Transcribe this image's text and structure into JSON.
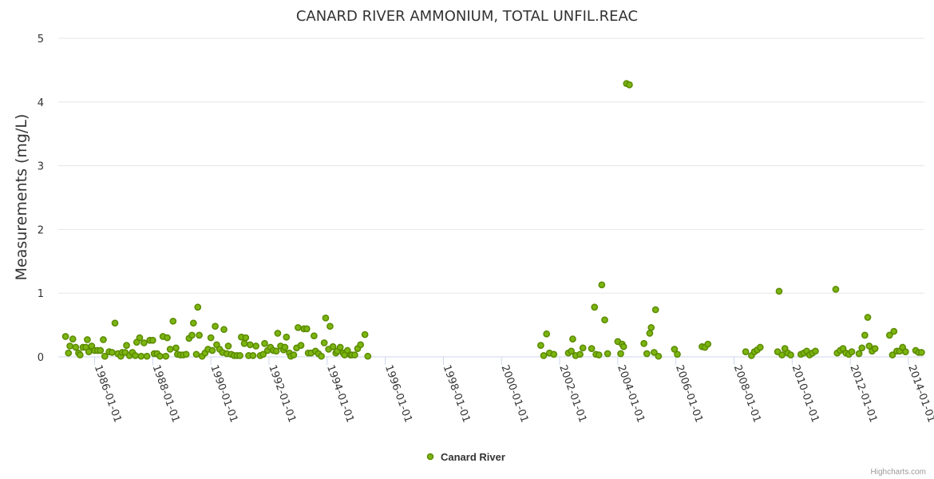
{
  "chart_data": {
    "type": "scatter",
    "title": "CANARD RIVER AMMONIUM, TOTAL UNFIL.REAC",
    "ylabel": "Measurements (mg/L)",
    "xlabel": "",
    "ylim": [
      0,
      5
    ],
    "y_ticks": [
      "0",
      "1",
      "2",
      "3",
      "4",
      "5"
    ],
    "x_ticks": [
      "1986-01-01",
      "1988-01-01",
      "1990-01-01",
      "1992-01-01",
      "1994-01-01",
      "1996-01-01",
      "1998-01-01",
      "2000-01-01",
      "2002-01-01",
      "2004-01-01",
      "2006-01-01",
      "2008-01-01",
      "2010-01-01",
      "2012-01-01",
      "2014-01-01"
    ],
    "x_tick_years": [
      1986,
      1988,
      1990,
      1992,
      1994,
      1996,
      1998,
      2000,
      2002,
      2004,
      2006,
      2008,
      2010,
      2012,
      2014
    ],
    "xlim": [
      1984.75,
      2014.55
    ],
    "grid": true,
    "legend_position": "bottom-center",
    "series": [
      {
        "name": "Canard River",
        "color": "#7cb510",
        "points": [
          [
            1985.0,
            0.32
          ],
          [
            1985.1,
            0.06
          ],
          [
            1985.15,
            0.17
          ],
          [
            1985.25,
            0.28
          ],
          [
            1985.35,
            0.15
          ],
          [
            1985.45,
            0.06
          ],
          [
            1985.5,
            0.03
          ],
          [
            1985.6,
            0.15
          ],
          [
            1985.7,
            0.15
          ],
          [
            1985.75,
            0.27
          ],
          [
            1985.8,
            0.08
          ],
          [
            1985.9,
            0.17
          ],
          [
            1986.0,
            0.1
          ],
          [
            1986.1,
            0.1
          ],
          [
            1986.2,
            0.1
          ],
          [
            1986.3,
            0.27
          ],
          [
            1986.35,
            0.01
          ],
          [
            1986.5,
            0.08
          ],
          [
            1986.6,
            0.07
          ],
          [
            1986.7,
            0.53
          ],
          [
            1986.8,
            0.05
          ],
          [
            1986.9,
            0.01
          ],
          [
            1986.95,
            0.07
          ],
          [
            1987.05,
            0.07
          ],
          [
            1987.1,
            0.18
          ],
          [
            1987.2,
            0.02
          ],
          [
            1987.3,
            0.07
          ],
          [
            1987.4,
            0.02
          ],
          [
            1987.45,
            0.23
          ],
          [
            1987.55,
            0.3
          ],
          [
            1987.6,
            0.01
          ],
          [
            1987.7,
            0.22
          ],
          [
            1987.8,
            0.01
          ],
          [
            1987.9,
            0.26
          ],
          [
            1988.0,
            0.26
          ],
          [
            1988.05,
            0.05
          ],
          [
            1988.15,
            0.05
          ],
          [
            1988.25,
            0.01
          ],
          [
            1988.35,
            0.32
          ],
          [
            1988.45,
            0.01
          ],
          [
            1988.5,
            0.3
          ],
          [
            1988.6,
            0.12
          ],
          [
            1988.7,
            0.56
          ],
          [
            1988.8,
            0.14
          ],
          [
            1988.85,
            0.04
          ],
          [
            1988.95,
            0.03
          ],
          [
            1989.05,
            0.03
          ],
          [
            1989.15,
            0.04
          ],
          [
            1989.25,
            0.29
          ],
          [
            1989.35,
            0.34
          ],
          [
            1989.4,
            0.53
          ],
          [
            1989.5,
            0.04
          ],
          [
            1989.55,
            0.78
          ],
          [
            1989.6,
            0.34
          ],
          [
            1989.7,
            0.01
          ],
          [
            1989.8,
            0.06
          ],
          [
            1989.9,
            0.12
          ],
          [
            1990.0,
            0.3
          ],
          [
            1990.05,
            0.1
          ],
          [
            1990.15,
            0.48
          ],
          [
            1990.2,
            0.19
          ],
          [
            1990.3,
            0.12
          ],
          [
            1990.4,
            0.07
          ],
          [
            1990.45,
            0.43
          ],
          [
            1990.55,
            0.05
          ],
          [
            1990.6,
            0.17
          ],
          [
            1990.7,
            0.04
          ],
          [
            1990.8,
            0.02
          ],
          [
            1990.9,
            0.02
          ],
          [
            1991.0,
            0.02
          ],
          [
            1991.05,
            0.31
          ],
          [
            1991.15,
            0.21
          ],
          [
            1991.2,
            0.3
          ],
          [
            1991.3,
            0.02
          ],
          [
            1991.35,
            0.19
          ],
          [
            1991.45,
            0.02
          ],
          [
            1991.55,
            0.17
          ],
          [
            1991.7,
            0.02
          ],
          [
            1991.8,
            0.04
          ],
          [
            1991.85,
            0.21
          ],
          [
            1991.95,
            0.1
          ],
          [
            1992.05,
            0.15
          ],
          [
            1992.15,
            0.1
          ],
          [
            1992.25,
            0.09
          ],
          [
            1992.3,
            0.37
          ],
          [
            1992.4,
            0.17
          ],
          [
            1992.5,
            0.11
          ],
          [
            1992.55,
            0.15
          ],
          [
            1992.6,
            0.31
          ],
          [
            1992.7,
            0.06
          ],
          [
            1992.75,
            0.01
          ],
          [
            1992.85,
            0.03
          ],
          [
            1992.95,
            0.14
          ],
          [
            1993.0,
            0.46
          ],
          [
            1993.1,
            0.18
          ],
          [
            1993.2,
            0.44
          ],
          [
            1993.3,
            0.44
          ],
          [
            1993.35,
            0.06
          ],
          [
            1993.45,
            0.06
          ],
          [
            1993.55,
            0.33
          ],
          [
            1993.6,
            0.09
          ],
          [
            1993.7,
            0.05
          ],
          [
            1993.8,
            0.01
          ],
          [
            1993.9,
            0.22
          ],
          [
            1993.95,
            0.61
          ],
          [
            1994.05,
            0.12
          ],
          [
            1994.1,
            0.48
          ],
          [
            1994.2,
            0.16
          ],
          [
            1994.3,
            0.06
          ],
          [
            1994.35,
            0.09
          ],
          [
            1994.45,
            0.15
          ],
          [
            1994.55,
            0.06
          ],
          [
            1994.6,
            0.03
          ],
          [
            1994.7,
            0.1
          ],
          [
            1994.8,
            0.03
          ],
          [
            1994.85,
            0.03
          ],
          [
            1994.95,
            0.03
          ],
          [
            1995.05,
            0.13
          ],
          [
            1995.15,
            0.19
          ],
          [
            1995.3,
            0.35
          ],
          [
            1995.4,
            0.01
          ],
          [
            2001.35,
            0.18
          ],
          [
            2001.45,
            0.02
          ],
          [
            2001.55,
            0.36
          ],
          [
            2001.65,
            0.06
          ],
          [
            2001.8,
            0.04
          ],
          [
            2002.3,
            0.06
          ],
          [
            2002.4,
            0.09
          ],
          [
            2002.45,
            0.28
          ],
          [
            2002.55,
            0.02
          ],
          [
            2002.7,
            0.04
          ],
          [
            2002.8,
            0.14
          ],
          [
            2003.1,
            0.13
          ],
          [
            2003.2,
            0.78
          ],
          [
            2003.25,
            0.04
          ],
          [
            2003.35,
            0.03
          ],
          [
            2003.45,
            1.13
          ],
          [
            2003.55,
            0.58
          ],
          [
            2003.65,
            0.05
          ],
          [
            2004.0,
            0.24
          ],
          [
            2004.1,
            0.05
          ],
          [
            2004.15,
            0.2
          ],
          [
            2004.2,
            0.16
          ],
          [
            2004.3,
            4.29
          ],
          [
            2004.4,
            4.27
          ],
          [
            2004.9,
            0.21
          ],
          [
            2005.0,
            0.05
          ],
          [
            2005.1,
            0.37
          ],
          [
            2005.15,
            0.46
          ],
          [
            2005.25,
            0.07
          ],
          [
            2005.3,
            0.74
          ],
          [
            2005.4,
            0.01
          ],
          [
            2005.95,
            0.12
          ],
          [
            2006.05,
            0.04
          ],
          [
            2006.9,
            0.16
          ],
          [
            2007.0,
            0.15
          ],
          [
            2007.1,
            0.2
          ],
          [
            2008.4,
            0.08
          ],
          [
            2008.6,
            0.02
          ],
          [
            2008.7,
            0.08
          ],
          [
            2008.8,
            0.11
          ],
          [
            2008.9,
            0.15
          ],
          [
            2009.5,
            0.08
          ],
          [
            2009.55,
            1.03
          ],
          [
            2009.65,
            0.03
          ],
          [
            2009.75,
            0.13
          ],
          [
            2009.85,
            0.06
          ],
          [
            2009.95,
            0.03
          ],
          [
            2010.3,
            0.04
          ],
          [
            2010.4,
            0.06
          ],
          [
            2010.5,
            0.09
          ],
          [
            2010.6,
            0.03
          ],
          [
            2010.7,
            0.06
          ],
          [
            2010.8,
            0.09
          ],
          [
            2011.5,
            1.06
          ],
          [
            2011.55,
            0.06
          ],
          [
            2011.65,
            0.1
          ],
          [
            2011.75,
            0.13
          ],
          [
            2011.85,
            0.06
          ],
          [
            2011.95,
            0.04
          ],
          [
            2012.05,
            0.08
          ],
          [
            2012.3,
            0.05
          ],
          [
            2012.4,
            0.14
          ],
          [
            2012.5,
            0.34
          ],
          [
            2012.6,
            0.62
          ],
          [
            2012.65,
            0.17
          ],
          [
            2012.75,
            0.09
          ],
          [
            2012.85,
            0.13
          ],
          [
            2013.35,
            0.34
          ],
          [
            2013.45,
            0.03
          ],
          [
            2013.5,
            0.4
          ],
          [
            2013.6,
            0.09
          ],
          [
            2013.7,
            0.09
          ],
          [
            2013.8,
            0.15
          ],
          [
            2013.9,
            0.08
          ],
          [
            2014.25,
            0.1
          ],
          [
            2014.35,
            0.07
          ],
          [
            2014.45,
            0.07
          ]
        ]
      }
    ]
  },
  "credits": "Highcharts.com"
}
